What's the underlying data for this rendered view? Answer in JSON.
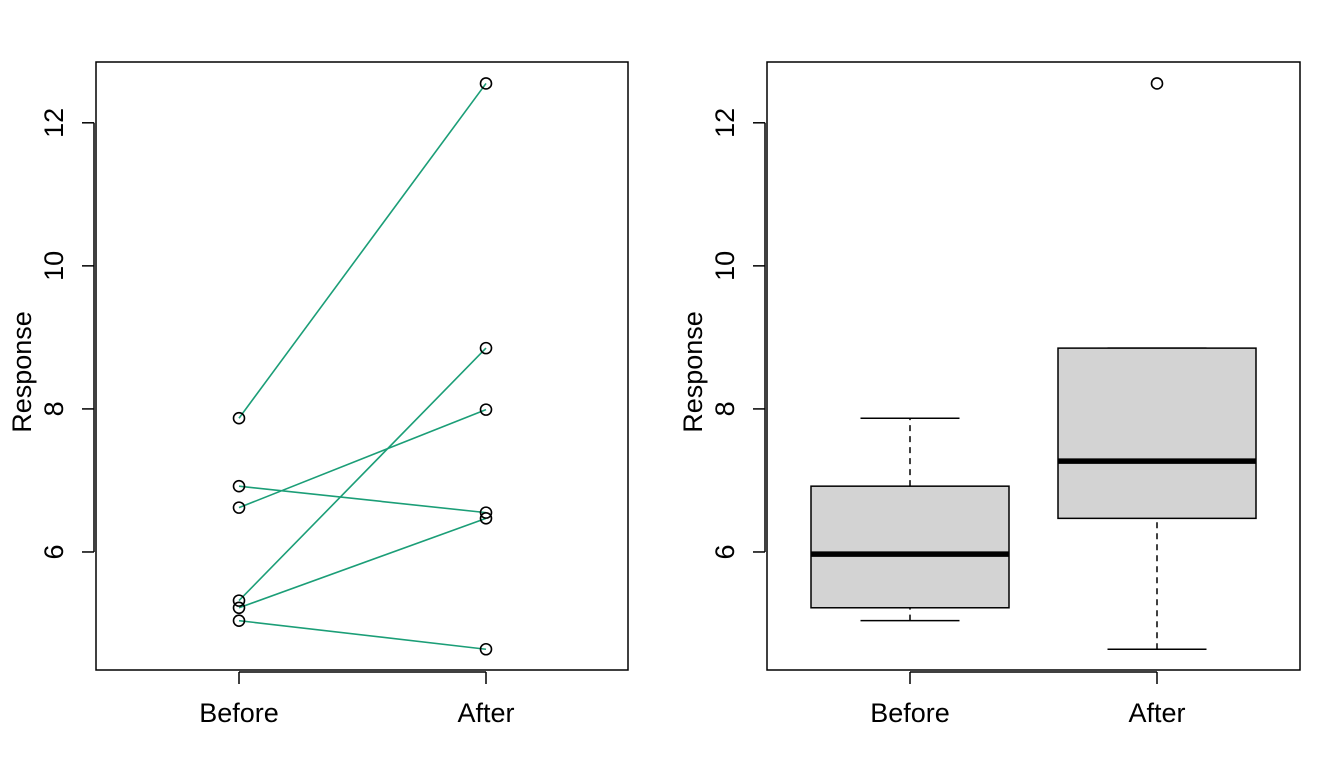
{
  "chart_data": [
    {
      "type": "line",
      "subtype": "paired-slopegraph",
      "categories": [
        "Before",
        "After"
      ],
      "ylabel": "Response",
      "xlabel": "",
      "ylim": [
        4.35,
        12.85
      ],
      "yticks": [
        6,
        8,
        10,
        12
      ],
      "line_color": "#1b9e77",
      "pairs": [
        {
          "before": 7.87,
          "after": 12.55
        },
        {
          "before": 6.92,
          "after": 6.55
        },
        {
          "before": 6.62,
          "after": 7.99
        },
        {
          "before": 5.32,
          "after": 8.85
        },
        {
          "before": 5.22,
          "after": 6.47
        },
        {
          "before": 5.04,
          "after": 4.64
        }
      ]
    },
    {
      "type": "boxplot",
      "categories": [
        "Before",
        "After"
      ],
      "ylabel": "Response",
      "xlabel": "",
      "ylim": [
        4.35,
        12.85
      ],
      "yticks": [
        6,
        8,
        10,
        12
      ],
      "box_fill": "#d3d3d3",
      "boxes": [
        {
          "name": "Before",
          "whisker_low": 5.04,
          "q1": 5.22,
          "median": 5.97,
          "q3": 6.92,
          "whisker_high": 7.87,
          "outliers": []
        },
        {
          "name": "After",
          "whisker_low": 4.64,
          "q1": 6.47,
          "median": 7.27,
          "q3": 8.85,
          "whisker_high": 8.85,
          "outliers": [
            12.55
          ]
        }
      ]
    }
  ]
}
